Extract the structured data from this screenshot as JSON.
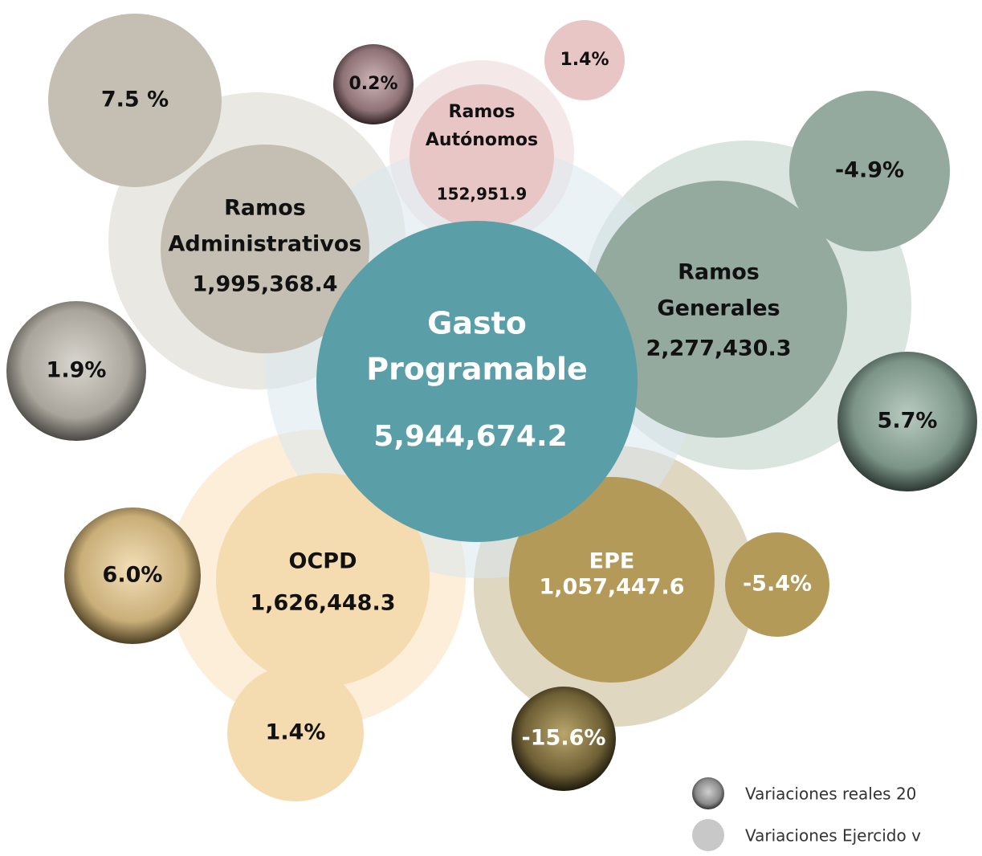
{
  "center": {
    "label": [
      "Gasto",
      "Programable"
    ],
    "value": "5,944,674.2"
  },
  "nodes": [
    {
      "label": [
        "Ramos",
        "Autónomos"
      ],
      "value": "152,951.9",
      "variations": [
        "0.2%",
        "1.4%"
      ]
    },
    {
      "label": [
        "Ramos",
        "Administrativos"
      ],
      "value": "1,995,368.4",
      "variations": [
        "1.9%",
        "7.5 %"
      ]
    },
    {
      "label": [
        "Ramos",
        "Generales"
      ],
      "value": "2,277,430.3",
      "variations": [
        "5.7%",
        "-4.9%"
      ]
    },
    {
      "label": [
        "OCPD"
      ],
      "value": "1,626,448.3",
      "variations": [
        "6.0%",
        "1.4%"
      ]
    },
    {
      "label": [
        "EPE"
      ],
      "value": "1,057,447.6",
      "variations": [
        "-15.6%",
        "-5.4%"
      ]
    }
  ],
  "legend": [
    "Variaciones reales 20",
    "Variaciones Ejercido v"
  ]
}
